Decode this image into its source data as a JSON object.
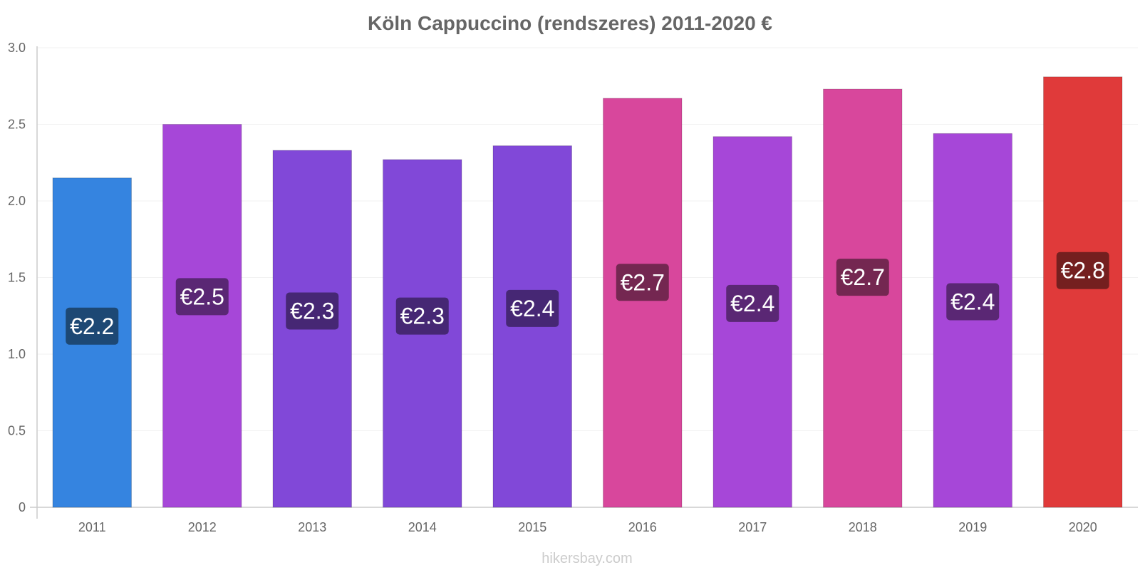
{
  "title": "Köln Cappuccino (rendszeres) 2011-2020 €",
  "watermark": "hikersbay.com",
  "chart_data": {
    "type": "bar",
    "title": "Köln Cappuccino (rendszeres) 2011-2020 €",
    "xlabel": "",
    "ylabel": "",
    "categories": [
      "2011",
      "2012",
      "2013",
      "2014",
      "2015",
      "2016",
      "2017",
      "2018",
      "2019",
      "2020"
    ],
    "values": [
      2.15,
      2.5,
      2.33,
      2.27,
      2.36,
      2.67,
      2.42,
      2.73,
      2.44,
      2.81
    ],
    "data_labels": [
      "€2.2",
      "€2.5",
      "€2.3",
      "€2.3",
      "€2.4",
      "€2.7",
      "€2.4",
      "€2.7",
      "€2.4",
      "€2.8"
    ],
    "bar_colors": [
      "#3584e0",
      "#a647d8",
      "#8148d8",
      "#8148d8",
      "#8148d8",
      "#d8479c",
      "#a647d8",
      "#d8479c",
      "#a647d8",
      "#e03a3a"
    ],
    "label_colors": [
      "#1d4874",
      "#5a2774",
      "#462774",
      "#462774",
      "#462774",
      "#742751",
      "#5a2774",
      "#742751",
      "#5a2774",
      "#741f1f"
    ],
    "ylim": [
      0,
      3.0
    ],
    "yticks": [
      0,
      0.5,
      1.0,
      1.5,
      2.0,
      2.5,
      3.0
    ],
    "ytick_labels": [
      "0",
      "0.5",
      "1.0",
      "1.5",
      "2.0",
      "2.5",
      "3.0"
    ],
    "grid": true,
    "legend": "none"
  }
}
